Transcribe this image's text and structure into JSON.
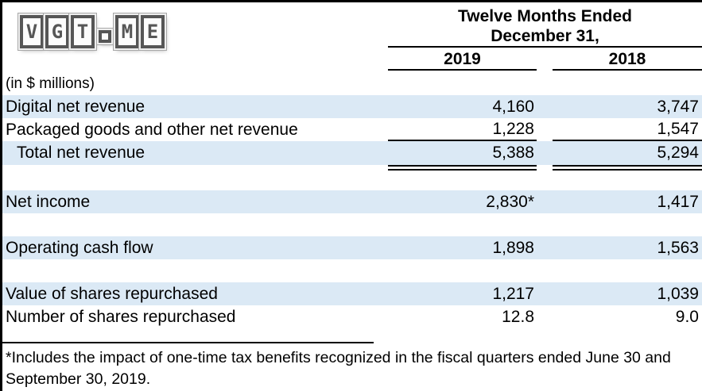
{
  "logo": {
    "letters_left": [
      "V",
      "G",
      "T"
    ],
    "letters_right": [
      "M",
      "E"
    ]
  },
  "header": {
    "period_line1": "Twelve Months Ended",
    "period_line2": "December 31,",
    "years": [
      "2019",
      "2018"
    ]
  },
  "unit_note": "(in $ millions)",
  "rows": [
    {
      "label": "Digital net revenue",
      "v2019": "4,160",
      "v2018": "3,747"
    },
    {
      "label": "Packaged goods and other net revenue",
      "v2019": "1,228",
      "v2018": "1,547"
    },
    {
      "label": "Total net revenue",
      "v2019": "5,388",
      "v2018": "5,294"
    },
    {
      "label": "Net income",
      "v2019": "2,830*",
      "v2018": "1,417"
    },
    {
      "label": "Operating cash flow",
      "v2019": "1,898",
      "v2018": "1,563"
    },
    {
      "label": "Value of shares repurchased",
      "v2019": "1,217",
      "v2018": "1,039"
    },
    {
      "label": "Number of shares repurchased",
      "v2019": "12.8",
      "v2018": "9.0"
    }
  ],
  "footnote": "*Includes the impact of one-time tax benefits recognized in the fiscal quarters ended June 30 and September 30, 2019.",
  "colors": {
    "row_highlight": "#dbe9f5",
    "line": "#000000"
  },
  "chart_data": {
    "type": "table",
    "title": "Twelve Months Ended December 31,",
    "columns": [
      "(in $ millions)",
      "2019",
      "2018"
    ],
    "rows": [
      [
        "Digital net revenue",
        "4,160",
        "3,747"
      ],
      [
        "Packaged goods and other net revenue",
        "1,228",
        "1,547"
      ],
      [
        "Total net revenue",
        "5,388",
        "5,294"
      ],
      [
        "Net income",
        "2,830*",
        "1,417"
      ],
      [
        "Operating cash flow",
        "1,898",
        "1,563"
      ],
      [
        "Value of shares repurchased",
        "1,217",
        "1,039"
      ],
      [
        "Number of shares repurchased",
        "12.8",
        "9.0"
      ]
    ]
  }
}
